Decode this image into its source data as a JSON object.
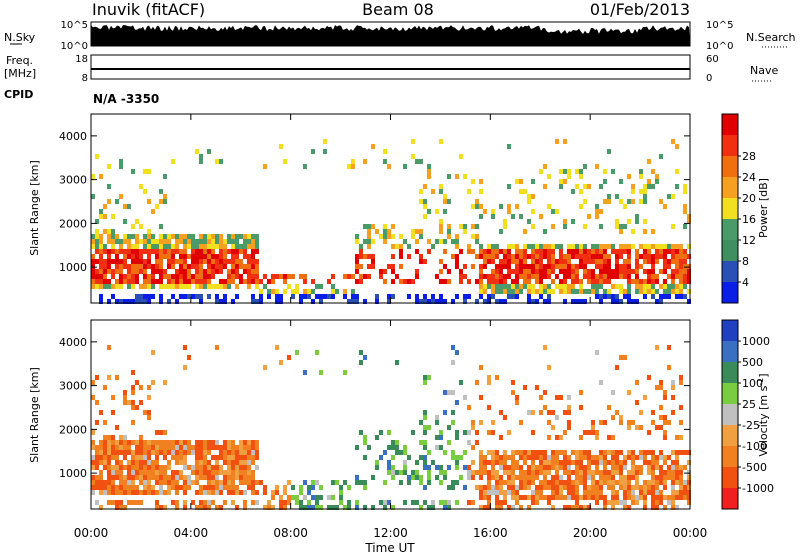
{
  "header": {
    "title": "Inuvik (fitACF)",
    "beam": "Beam 08",
    "date": "01/Feb/2013"
  },
  "strips": {
    "nsky": {
      "label": "N.Sky",
      "ticks": [
        "10^5",
        "10^0"
      ]
    },
    "nsearch": {
      "label": "N.Search",
      "ticks": [
        "10^5",
        "10^0"
      ]
    },
    "freq": {
      "label": "Freq.",
      "unit": "[MHz]",
      "ticks": [
        "18",
        "8"
      ]
    },
    "nave": {
      "label": "Nave",
      "ticks": [
        "60",
        "0"
      ]
    },
    "cpid": {
      "label": "CPID",
      "value": "N/A -3350"
    }
  },
  "colors": {
    "power": [
      "#0a1ee6",
      "#2a4fb5",
      "#3f8f60",
      "#4a9a6a",
      "#f0e020",
      "#f5a020",
      "#f07010",
      "#f03010",
      "#e00000"
    ],
    "velocity": [
      "#2040c0",
      "#3a70c0",
      "#3a8a5a",
      "#7acc40",
      "#c0c0c0",
      "#f0a040",
      "#f08020",
      "#f05010",
      "#f02020"
    ]
  },
  "chart_data": [
    {
      "type": "heatmap",
      "name": "power-panel",
      "ylabel": "Slant Range [km]",
      "ylim": [
        180,
        4500
      ],
      "yticks": [
        "1000",
        "2000",
        "3000",
        "4000"
      ],
      "ytick_values": [
        1000,
        2000,
        3000,
        4000
      ],
      "xlim": [
        0,
        24
      ],
      "colorbar": {
        "label": "Power [dB]",
        "ticks": [
          "4",
          "8",
          "12",
          "16",
          "20",
          "24",
          "28"
        ]
      }
    },
    {
      "type": "heatmap",
      "name": "velocity-panel",
      "ylabel": "Slant Range [km]",
      "ylim": [
        180,
        4500
      ],
      "yticks": [
        "1000",
        "2000",
        "3000",
        "4000"
      ],
      "ytick_values": [
        1000,
        2000,
        3000,
        4000
      ],
      "xlim": [
        0,
        24
      ],
      "colorbar": {
        "label": "Velocity [m s",
        "label_sup": "-1",
        "label_end": "]",
        "ticks": [
          "-1000",
          "-500",
          "-100",
          "-25",
          "25",
          "100",
          "500",
          "1000"
        ]
      }
    }
  ],
  "xaxis": {
    "label": "Time UT",
    "ticks": [
      "00:00",
      "04:00",
      "08:00",
      "12:00",
      "16:00",
      "20:00",
      "00:00"
    ],
    "tick_values": [
      0,
      4,
      8,
      12,
      16,
      20,
      24
    ]
  }
}
